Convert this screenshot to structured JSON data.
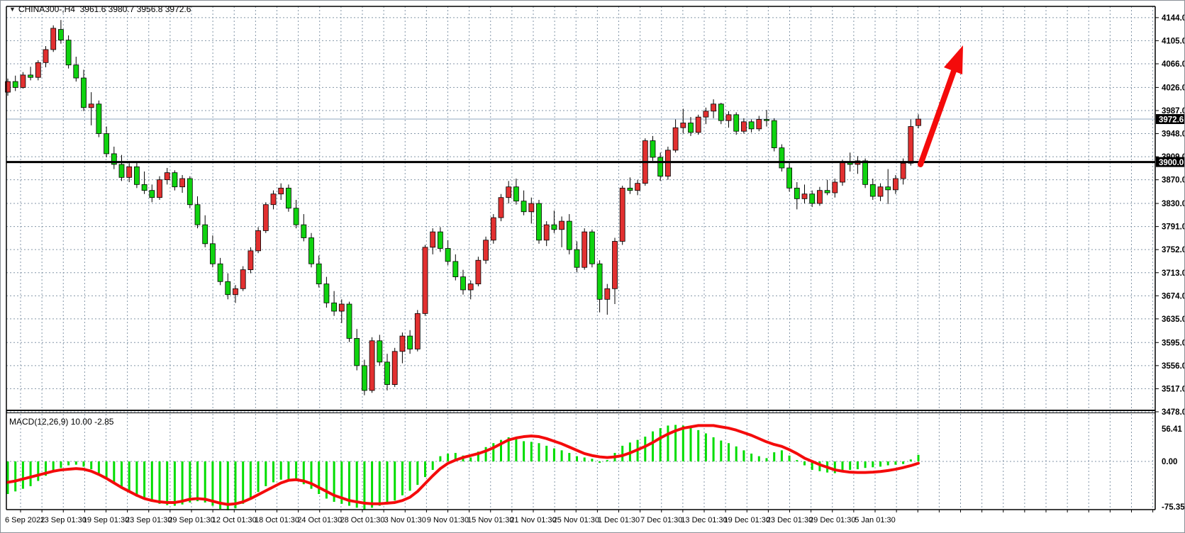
{
  "window": {
    "symbol_period": "CHINA300-,H4",
    "title_ohlc": "3961.6 3980.7 3956.8 3972.6",
    "collapse_icon": "triangle-down"
  },
  "price_scale": {
    "current_price_label": "3972.6",
    "hline_price_label": "3900.0"
  },
  "macd_pane": {
    "label": "MACD(12,26,9)",
    "values": "10.00 -2.85"
  },
  "colors": {
    "up_candle": "#e23030",
    "down_candle": "#0fd30f",
    "candle_border": "#000000",
    "grid": "#8496a8",
    "macd_bar": "#00dd00",
    "macd_signal": "#f40b0b",
    "hline": "#000000",
    "current_price_line": "#90a8c0",
    "arrow": "#f40b0b",
    "scale_box_bg": "#000000",
    "scale_box_text": "#ffffff"
  },
  "chart_data": [
    {
      "type": "candlestick",
      "title": "CHINA300-,H4",
      "ohlc_display": "3961.6 3980.7 3956.8 3972.6",
      "ylim": [
        3478,
        4163
      ],
      "grid": true,
      "y_ticks": [
        4144.0,
        4105.0,
        4066.0,
        4026.0,
        3987.0,
        3948.0,
        3909.0,
        3870.0,
        3830.0,
        3791.0,
        3752.0,
        3713.0,
        3674.0,
        3635.0,
        3595.0,
        3556.0,
        3517.0,
        3478.0
      ],
      "x_labels": [
        "6 Sep 2022",
        "13 Sep 01:30",
        "19 Sep 01:30",
        "23 Sep 01:30",
        "29 Sep 01:30",
        "12 Oct 01:30",
        "18 Oct 01:30",
        "24 Oct 01:30",
        "28 Oct 01:30",
        "3 Nov 01:30",
        "9 Nov 01:30",
        "15 Nov 01:30",
        "21 Nov 01:30",
        "25 Nov 01:30",
        "1 Dec 01:30",
        "7 Dec 01:30",
        "13 Dec 01:30",
        "19 Dec 01:30",
        "23 Dec 01:30",
        "29 Dec 01:30",
        "5 Jan 01:30"
      ],
      "current_price": 3972.6,
      "hline": 3900.0,
      "annotation_arrow": {
        "from_price": 3897,
        "to_price": 4098,
        "direction": "up"
      },
      "candles": [
        [
          4018,
          4041,
          4012,
          4036
        ],
        [
          4036,
          4046,
          4020,
          4026
        ],
        [
          4026,
          4052,
          4024,
          4047
        ],
        [
          4047,
          4061,
          4038,
          4043
        ],
        [
          4043,
          4072,
          4038,
          4068
        ],
        [
          4068,
          4096,
          4060,
          4090
        ],
        [
          4090,
          4131,
          4086,
          4126
        ],
        [
          4124,
          4140,
          4100,
          4106
        ],
        [
          4106,
          4114,
          4058,
          4064
        ],
        [
          4064,
          4078,
          4036,
          4042
        ],
        [
          4042,
          4056,
          3986,
          3992
        ],
        [
          3992,
          4018,
          3962,
          3998
        ],
        [
          3998,
          4004,
          3942,
          3948
        ],
        [
          3948,
          3960,
          3908,
          3914
        ],
        [
          3914,
          3926,
          3888,
          3896
        ],
        [
          3896,
          3912,
          3868,
          3874
        ],
        [
          3874,
          3898,
          3866,
          3892
        ],
        [
          3892,
          3900,
          3856,
          3862
        ],
        [
          3862,
          3884,
          3846,
          3852
        ],
        [
          3852,
          3862,
          3832,
          3840
        ],
        [
          3840,
          3876,
          3836,
          3870
        ],
        [
          3870,
          3890,
          3862,
          3882
        ],
        [
          3882,
          3886,
          3852,
          3858
        ],
        [
          3858,
          3878,
          3848,
          3872
        ],
        [
          3872,
          3876,
          3822,
          3828
        ],
        [
          3828,
          3842,
          3788,
          3794
        ],
        [
          3794,
          3810,
          3756,
          3762
        ],
        [
          3762,
          3776,
          3722,
          3728
        ],
        [
          3728,
          3738,
          3692,
          3698
        ],
        [
          3698,
          3712,
          3668,
          3676
        ],
        [
          3676,
          3692,
          3662,
          3686
        ],
        [
          3686,
          3724,
          3682,
          3718
        ],
        [
          3718,
          3756,
          3712,
          3750
        ],
        [
          3750,
          3790,
          3746,
          3784
        ],
        [
          3784,
          3832,
          3780,
          3828
        ],
        [
          3828,
          3852,
          3820,
          3846
        ],
        [
          3846,
          3864,
          3836,
          3856
        ],
        [
          3856,
          3862,
          3816,
          3822
        ],
        [
          3822,
          3836,
          3788,
          3794
        ],
        [
          3794,
          3812,
          3766,
          3772
        ],
        [
          3772,
          3780,
          3722,
          3728
        ],
        [
          3728,
          3742,
          3688,
          3694
        ],
        [
          3694,
          3706,
          3654,
          3662
        ],
        [
          3662,
          3682,
          3640,
          3648
        ],
        [
          3648,
          3668,
          3628,
          3660
        ],
        [
          3660,
          3664,
          3596,
          3602
        ],
        [
          3602,
          3618,
          3548,
          3556
        ],
        [
          3556,
          3566,
          3506,
          3514
        ],
        [
          3514,
          3604,
          3510,
          3598
        ],
        [
          3598,
          3608,
          3556,
          3562
        ],
        [
          3562,
          3576,
          3514,
          3524
        ],
        [
          3524,
          3586,
          3520,
          3580
        ],
        [
          3580,
          3612,
          3560,
          3606
        ],
        [
          3606,
          3616,
          3576,
          3584
        ],
        [
          3584,
          3650,
          3580,
          3644
        ],
        [
          3644,
          3760,
          3640,
          3756
        ],
        [
          3756,
          3788,
          3744,
          3782
        ],
        [
          3782,
          3790,
          3748,
          3754
        ],
        [
          3754,
          3768,
          3726,
          3732
        ],
        [
          3732,
          3744,
          3700,
          3706
        ],
        [
          3706,
          3718,
          3676,
          3684
        ],
        [
          3684,
          3700,
          3668,
          3694
        ],
        [
          3694,
          3740,
          3690,
          3734
        ],
        [
          3734,
          3774,
          3728,
          3768
        ],
        [
          3768,
          3812,
          3762,
          3806
        ],
        [
          3806,
          3846,
          3800,
          3840
        ],
        [
          3840,
          3868,
          3830,
          3858
        ],
        [
          3858,
          3872,
          3828,
          3834
        ],
        [
          3834,
          3852,
          3810,
          3816
        ],
        [
          3816,
          3840,
          3796,
          3830
        ],
        [
          3830,
          3836,
          3762,
          3768
        ],
        [
          3768,
          3800,
          3758,
          3794
        ],
        [
          3794,
          3818,
          3780,
          3786
        ],
        [
          3786,
          3808,
          3756,
          3800
        ],
        [
          3800,
          3812,
          3744,
          3752
        ],
        [
          3752,
          3766,
          3714,
          3722
        ],
        [
          3722,
          3788,
          3718,
          3782
        ],
        [
          3782,
          3786,
          3722,
          3728
        ],
        [
          3728,
          3734,
          3646,
          3668
        ],
        [
          3668,
          3694,
          3642,
          3686
        ],
        [
          3686,
          3772,
          3660,
          3766
        ],
        [
          3766,
          3860,
          3760,
          3856
        ],
        [
          3856,
          3874,
          3846,
          3852
        ],
        [
          3852,
          3870,
          3844,
          3864
        ],
        [
          3864,
          3940,
          3860,
          3936
        ],
        [
          3936,
          3944,
          3902,
          3908
        ],
        [
          3908,
          3916,
          3868,
          3876
        ],
        [
          3876,
          3926,
          3870,
          3920
        ],
        [
          3920,
          3972,
          3916,
          3958
        ],
        [
          3958,
          3990,
          3948,
          3966
        ],
        [
          3966,
          3976,
          3944,
          3950
        ],
        [
          3950,
          3980,
          3946,
          3976
        ],
        [
          3976,
          3992,
          3964,
          3986
        ],
        [
          3986,
          4006,
          3974,
          3998
        ],
        [
          3998,
          4000,
          3964,
          3970
        ],
        [
          3970,
          3986,
          3958,
          3980
        ],
        [
          3980,
          3984,
          3946,
          3952
        ],
        [
          3952,
          3974,
          3948,
          3968
        ],
        [
          3968,
          3972,
          3950,
          3956
        ],
        [
          3956,
          3978,
          3952,
          3972
        ],
        [
          3972,
          3988,
          3960,
          3970
        ],
        [
          3970,
          3974,
          3918,
          3924
        ],
        [
          3924,
          3930,
          3884,
          3890
        ],
        [
          3890,
          3898,
          3850,
          3856
        ],
        [
          3856,
          3866,
          3820,
          3838
        ],
        [
          3838,
          3862,
          3830,
          3846
        ],
        [
          3846,
          3852,
          3824,
          3830
        ],
        [
          3830,
          3858,
          3826,
          3852
        ],
        [
          3852,
          3870,
          3844,
          3848
        ],
        [
          3848,
          3872,
          3840,
          3866
        ],
        [
          3866,
          3904,
          3860,
          3900
        ],
        [
          3900,
          3916,
          3884,
          3896
        ],
        [
          3896,
          3910,
          3880,
          3902
        ],
        [
          3902,
          3906,
          3856,
          3862
        ],
        [
          3862,
          3872,
          3836,
          3842
        ],
        [
          3842,
          3864,
          3834,
          3858
        ],
        [
          3858,
          3888,
          3829,
          3853
        ],
        [
          3853,
          3878,
          3846,
          3872
        ],
        [
          3872,
          3906,
          3862,
          3898
        ],
        [
          3898,
          3972,
          3894,
          3960
        ],
        [
          3961.6,
          3980.7,
          3956.8,
          3972.6
        ]
      ]
    },
    {
      "type": "bar+line",
      "title": "MACD(12,26,9)",
      "current_values": "10.00 -2.85",
      "ylim": [
        -74,
        74
      ],
      "y_ticks": [
        56.41,
        0.0,
        -75.35
      ],
      "y_tick_labels": [
        "56.41",
        "0.00",
        "-75.35"
      ],
      "histogram": [
        -50,
        -46,
        -42,
        -38,
        -30,
        -22,
        -15,
        -10,
        -6,
        -5,
        -8,
        -12,
        -18,
        -26,
        -34,
        -41,
        -48,
        -54,
        -58,
        -62,
        -65,
        -67,
        -68,
        -66,
        -63,
        -61,
        -63,
        -68,
        -73,
        -75,
        -72,
        -65,
        -56,
        -47,
        -38,
        -32,
        -28,
        -27,
        -30,
        -35,
        -42,
        -50,
        -57,
        -62,
        -65,
        -68,
        -71,
        -74,
        -71,
        -68,
        -66,
        -60,
        -52,
        -45,
        -36,
        -24,
        -13,
        8,
        12,
        13,
        9,
        6,
        15,
        22,
        28,
        33,
        37,
        35,
        31,
        30,
        28,
        24,
        20,
        17,
        13,
        8,
        6,
        4,
        -2,
        2,
        13,
        24,
        29,
        33,
        38,
        46,
        51,
        55,
        56,
        55,
        53,
        48,
        43,
        37,
        32,
        28,
        23,
        17,
        12,
        8,
        5,
        14,
        17,
        9,
        2,
        -6,
        -13,
        -15,
        -17,
        -18,
        -15,
        -13,
        -12,
        -10,
        -9,
        -8,
        -6,
        -5,
        -4,
        3,
        10
      ],
      "signal": [
        -32,
        -30,
        -27,
        -24,
        -21,
        -18,
        -15,
        -13,
        -12,
        -11,
        -12,
        -15,
        -20,
        -26,
        -33,
        -40,
        -46,
        -52,
        -57,
        -60,
        -62,
        -63,
        -63,
        -61,
        -58,
        -57,
        -58,
        -61,
        -64,
        -66,
        -65,
        -62,
        -57,
        -51,
        -45,
        -39,
        -33,
        -29,
        -28,
        -30,
        -34,
        -40,
        -46,
        -52,
        -56,
        -60,
        -62,
        -64,
        -65,
        -65,
        -64,
        -63,
        -60,
        -55,
        -46,
        -34,
        -22,
        -11,
        -3,
        2,
        6,
        9,
        12,
        16,
        21,
        27,
        33,
        36,
        38,
        39,
        38,
        35,
        31,
        27,
        22,
        17,
        12,
        9,
        7,
        6,
        7,
        9,
        13,
        18,
        23,
        29,
        36,
        42,
        47,
        51,
        53,
        55,
        55,
        55,
        53,
        51,
        48,
        44,
        40,
        35,
        30,
        26,
        23,
        18,
        12,
        5,
        0,
        -5,
        -9,
        -13,
        -15,
        -16.5,
        -17,
        -17,
        -16.5,
        -15.5,
        -14,
        -12,
        -9.5,
        -6.5,
        -2.85
      ]
    }
  ]
}
